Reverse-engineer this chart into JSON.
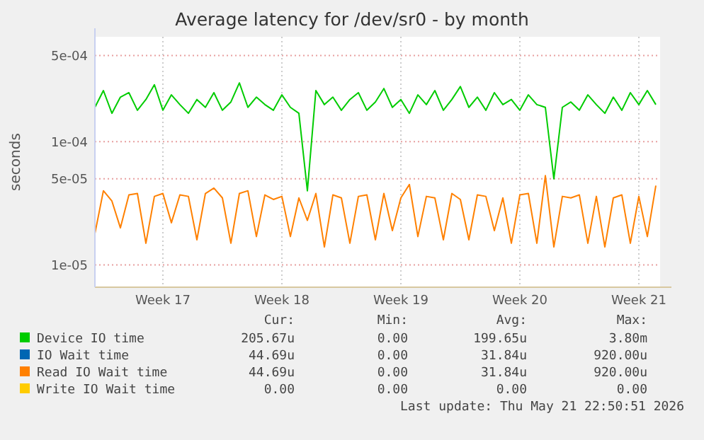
{
  "chart_data": {
    "type": "line",
    "title": "Average latency for /dev/sr0 - by month",
    "ylabel": "seconds",
    "log": true,
    "grid": true,
    "legend": "bottom",
    "marker": "none",
    "line_style": "solid",
    "ylim": [
      6.6e-06,
      0.00071
    ],
    "yticks": [
      {
        "value": 1e-05,
        "label": "1e-05"
      },
      {
        "value": 5e-05,
        "label": "5e-05"
      },
      {
        "value": 0.0001,
        "label": "1e-04"
      },
      {
        "value": 0.0005,
        "label": "5e-04"
      }
    ],
    "categories": [
      null,
      null,
      null,
      null,
      null,
      null,
      null,
      null,
      "Week 17",
      null,
      null,
      null,
      null,
      null,
      null,
      null,
      null,
      null,
      null,
      null,
      null,
      null,
      "Week 18",
      null,
      null,
      null,
      null,
      null,
      null,
      null,
      null,
      null,
      null,
      null,
      null,
      null,
      "Week 19",
      null,
      null,
      null,
      null,
      null,
      null,
      null,
      null,
      null,
      null,
      null,
      null,
      null,
      "Week 20",
      null,
      null,
      null,
      null,
      null,
      null,
      null,
      null,
      null,
      null,
      null,
      null,
      null,
      "Week 21",
      null,
      null
    ],
    "series": [
      {
        "name": "Device IO time",
        "color": "#00cc00",
        "values": [
          0.00019,
          0.00026,
          0.00017,
          0.00023,
          0.00025,
          0.00018,
          0.00022,
          0.00029,
          0.00018,
          0.00024,
          0.0002,
          0.00017,
          0.00022,
          0.00019,
          0.00025,
          0.00018,
          0.00021,
          0.0003,
          0.00019,
          0.00023,
          0.0002,
          0.00018,
          0.00024,
          0.00019,
          0.00017,
          4e-05,
          0.00026,
          0.0002,
          0.00023,
          0.00018,
          0.00022,
          0.00025,
          0.00018,
          0.00021,
          0.00027,
          0.00019,
          0.00022,
          0.00017,
          0.00024,
          0.0002,
          0.00026,
          0.00018,
          0.00022,
          0.00028,
          0.00019,
          0.00023,
          0.00018,
          0.00025,
          0.0002,
          0.00022,
          0.00018,
          0.00024,
          0.0002,
          0.00019,
          5e-05,
          0.00019,
          0.00021,
          0.00018,
          0.00024,
          0.0002,
          0.00017,
          0.00023,
          0.00018,
          0.00025,
          0.0002,
          0.00026,
          0.0002
        ]
      },
      {
        "name": "IO Wait time",
        "color": "#0066b3",
        "values": [
          null,
          null,
          null,
          null,
          null,
          null,
          null,
          null,
          null,
          null,
          null,
          null,
          null,
          null,
          null,
          null,
          null,
          null,
          null,
          null,
          null,
          null,
          null,
          null,
          null,
          null,
          null,
          null,
          null,
          null,
          null,
          null,
          null,
          null,
          null,
          null,
          null,
          null,
          null,
          null,
          null,
          null,
          null,
          null,
          null,
          null,
          null,
          null,
          null,
          null,
          null,
          null,
          null,
          null,
          null,
          null,
          null,
          null,
          null,
          null,
          null,
          null,
          null,
          null,
          null,
          null,
          null
        ]
      },
      {
        "name": "Read IO Wait time",
        "color": "#ff8000",
        "values": [
          1.8e-05,
          4e-05,
          3.3e-05,
          2e-05,
          3.7e-05,
          3.8e-05,
          1.5e-05,
          3.6e-05,
          3.8e-05,
          2.2e-05,
          3.7e-05,
          3.6e-05,
          1.6e-05,
          3.8e-05,
          4.2e-05,
          3.5e-05,
          1.5e-05,
          3.8e-05,
          4e-05,
          1.7e-05,
          3.7e-05,
          3.4e-05,
          3.6e-05,
          1.7e-05,
          3.5e-05,
          2.3e-05,
          3.8e-05,
          1.4e-05,
          3.7e-05,
          3.5e-05,
          1.5e-05,
          3.6e-05,
          3.7e-05,
          1.6e-05,
          3.8e-05,
          1.9e-05,
          3.5e-05,
          4.5e-05,
          1.7e-05,
          3.6e-05,
          3.5e-05,
          1.6e-05,
          3.8e-05,
          3.4e-05,
          1.6e-05,
          3.7e-05,
          3.6e-05,
          1.9e-05,
          3.5e-05,
          1.5e-05,
          3.7e-05,
          3.8e-05,
          1.5e-05,
          5.3e-05,
          1.4e-05,
          3.6e-05,
          3.5e-05,
          3.7e-05,
          1.5e-05,
          3.6e-05,
          1.4e-05,
          3.5e-05,
          3.7e-05,
          1.5e-05,
          3.6e-05,
          1.7e-05,
          4.4e-05
        ]
      },
      {
        "name": "Write IO Wait time",
        "color": "#ffcc00",
        "values": [
          null,
          null,
          null,
          null,
          null,
          null,
          null,
          null,
          null,
          null,
          null,
          null,
          null,
          null,
          null,
          null,
          null,
          null,
          null,
          null,
          null,
          null,
          null,
          null,
          null,
          null,
          null,
          null,
          null,
          null,
          null,
          null,
          null,
          null,
          null,
          null,
          null,
          null,
          null,
          null,
          null,
          null,
          null,
          null,
          null,
          null,
          null,
          null,
          null,
          null,
          null,
          null,
          null,
          null,
          null,
          null,
          null,
          null,
          null,
          null,
          null,
          null,
          null,
          null,
          null,
          null,
          null
        ]
      }
    ],
    "annotations": [
      "Cur:",
      "Min:",
      "Avg:",
      "Max:",
      "205.67u",
      "0.00",
      "199.65u",
      "3.80m",
      "44.69u",
      "0.00",
      "31.84u",
      "920.00u",
      "44.69u",
      "0.00",
      "31.84u",
      "920.00u",
      "0.00",
      "0.00",
      "0.00",
      "0.00",
      "Last update: Thu May 21 22:50:51 2026"
    ]
  }
}
